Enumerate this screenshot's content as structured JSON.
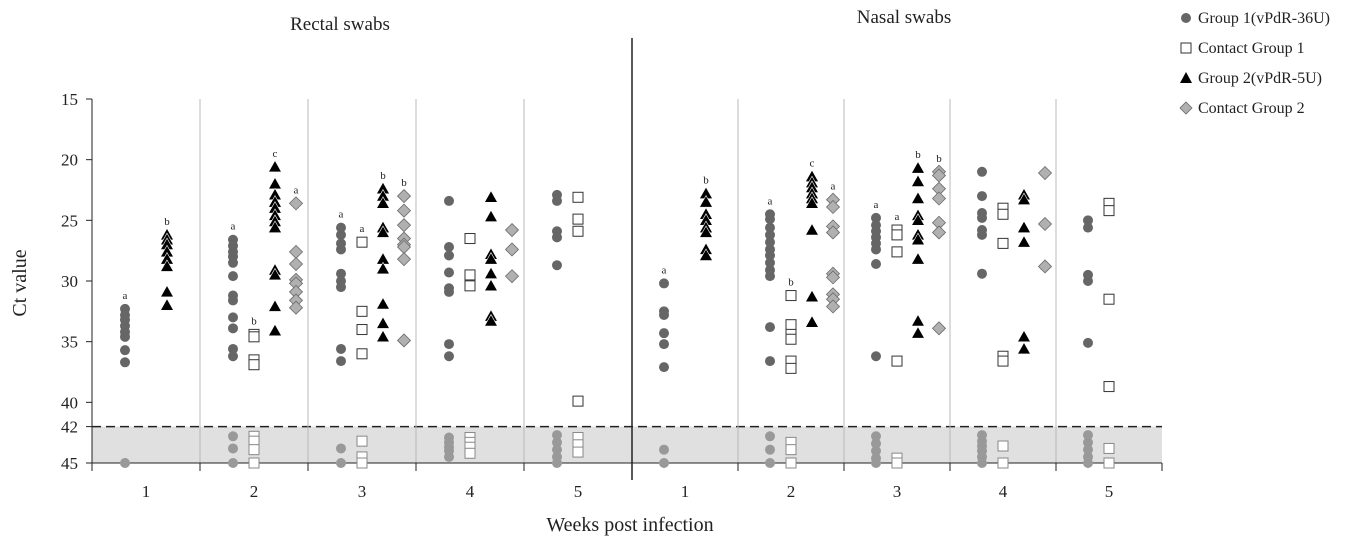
{
  "chart_data": {
    "type": "scatter",
    "panels": [
      {
        "title": "Rectal swabs",
        "weeks": [
          {
            "week": "1",
            "series": {
              "Group 1(vPdR-36U)": [
                32.3,
                32.8,
                33.2,
                33.7,
                34.2,
                34.6,
                35.7,
                36.7,
                45
              ],
              "Contact Group 1": [],
              "Group 2(vPdR-5U)": [
                26.2,
                26.6,
                27.0,
                27.6,
                28.2,
                28.8,
                30.9,
                32.0
              ],
              "Contact Group 2": []
            },
            "letters": {
              "Group 1(vPdR-36U)": "a",
              "Group 2(vPdR-5U)": "b"
            }
          },
          {
            "week": "2",
            "series": {
              "Group 1(vPdR-36U)": [
                26.6,
                27.1,
                27.6,
                28.0,
                28.5,
                29.6,
                31.2,
                31.6,
                33.0,
                33.9,
                35.6,
                36.2,
                42.8,
                43.8,
                45
              ],
              "Contact Group 1": [
                34.4,
                34.6,
                36.5,
                36.9,
                42.8,
                43.2,
                43.9,
                45
              ],
              "Group 2(vPdR-5U)": [
                20.6,
                22.0,
                22.9,
                23.5,
                24.0,
                24.6,
                25.1,
                25.6,
                29.1,
                29.5,
                32.1,
                34.1
              ],
              "Contact Group 2": [
                23.6,
                27.6,
                28.6,
                29.9,
                30.2,
                30.9,
                31.6,
                32.2
              ]
            },
            "letters": {
              "Group 1(vPdR-36U)": "a",
              "Contact Group 1": "b",
              "Group 2(vPdR-5U)": "c",
              "Contact Group 2": "a"
            }
          },
          {
            "week": "3",
            "series": {
              "Group 1(vPdR-36U)": [
                25.6,
                26.2,
                26.9,
                27.4,
                29.4,
                30.0,
                30.5,
                35.6,
                36.6,
                43.8,
                45
              ],
              "Contact Group 1": [
                26.8,
                32.5,
                34.0,
                36.0,
                43.2,
                44.5,
                45
              ],
              "Group 2(vPdR-5U)": [
                22.4,
                23.0,
                23.6,
                25.6,
                26.0,
                28.2,
                29.0,
                31.9,
                33.5,
                34.6
              ],
              "Contact Group 2": [
                23.0,
                24.2,
                25.4,
                26.5,
                27.0,
                27.2,
                28.2,
                34.9
              ]
            },
            "letters": {
              "Group 1(vPdR-36U)": "a",
              "Contact Group 1": "a",
              "Group 2(vPdR-5U)": "b",
              "Contact Group 2": "b"
            }
          },
          {
            "week": "4",
            "series": {
              "Group 1(vPdR-36U)": [
                23.4,
                27.2,
                27.9,
                29.3,
                30.6,
                30.9,
                35.2,
                36.2,
                42.9,
                43.3,
                43.7,
                44.0,
                44.5
              ],
              "Contact Group 1": [
                26.5,
                29.5,
                30.4,
                42.9,
                43.3,
                43.7,
                44.2
              ],
              "Group 2(vPdR-5U)": [
                23.1,
                24.7,
                27.8,
                28.2,
                29.4,
                30.4,
                32.9,
                33.3
              ],
              "Contact Group 2": [
                25.8,
                27.4,
                29.6
              ]
            },
            "letters": {}
          },
          {
            "week": "5",
            "series": {
              "Group 1(vPdR-36U)": [
                22.9,
                23.4,
                25.9,
                26.4,
                28.7,
                42.7,
                43.3,
                43.9,
                44.5,
                45
              ],
              "Contact Group 1": [
                23.1,
                24.9,
                25.9,
                39.9,
                42.9,
                43.5,
                44.1
              ],
              "Group 2(vPdR-5U)": [],
              "Contact Group 2": []
            },
            "letters": {}
          }
        ]
      },
      {
        "title": "Nasal swabs",
        "weeks": [
          {
            "week": "1",
            "series": {
              "Group 1(vPdR-36U)": [
                30.2,
                32.5,
                32.8,
                34.3,
                35.2,
                37.1,
                43.9,
                45
              ],
              "Contact Group 1": [],
              "Group 2(vPdR-5U)": [
                22.8,
                23.5,
                24.5,
                25.0,
                25.6,
                26.0,
                27.4,
                27.9
              ],
              "Contact Group 2": []
            },
            "letters": {
              "Group 1(vPdR-36U)": "a",
              "Group 2(vPdR-5U)": "b"
            }
          },
          {
            "week": "2",
            "series": {
              "Group 1(vPdR-36U)": [
                24.5,
                24.9,
                25.6,
                26.2,
                26.8,
                27.4,
                27.9,
                28.5,
                29.1,
                29.6,
                33.8,
                36.6,
                42.8,
                43.9,
                45
              ],
              "Contact Group 1": [
                31.2,
                33.6,
                34.4,
                34.8,
                36.6,
                37.2,
                43.3,
                43.9,
                45
              ],
              "Group 2(vPdR-5U)": [
                21.4,
                21.9,
                22.3,
                22.8,
                23.2,
                23.6,
                25.8,
                31.3,
                33.4
              ],
              "Contact Group 2": [
                23.3,
                23.9,
                25.5,
                26.0,
                29.4,
                29.7,
                31.1,
                31.5,
                32.1
              ]
            },
            "letters": {
              "Group 1(vPdR-36U)": "a",
              "Contact Group 1": "b",
              "Group 2(vPdR-5U)": "c",
              "Contact Group 2": "a"
            }
          },
          {
            "week": "3",
            "series": {
              "Group 1(vPdR-36U)": [
                24.8,
                25.4,
                25.9,
                26.4,
                26.9,
                27.4,
                28.6,
                36.2,
                42.8,
                43.4,
                44.0,
                44.6,
                45
              ],
              "Contact Group 1": [
                25.8,
                26.2,
                27.6,
                36.6,
                44.6,
                45
              ],
              "Group 2(vPdR-5U)": [
                20.7,
                21.8,
                23.2,
                24.6,
                25.0,
                26.2,
                26.6,
                28.2,
                33.3,
                34.3
              ],
              "Contact Group 2": [
                21.0,
                21.3,
                22.4,
                23.2,
                25.2,
                26.0,
                33.9
              ]
            },
            "letters": {
              "Group 1(vPdR-36U)": "a",
              "Contact Group 1": "a",
              "Group 2(vPdR-5U)": "b",
              "Contact Group 2": "b"
            }
          },
          {
            "week": "4",
            "series": {
              "Group 1(vPdR-36U)": [
                21.0,
                23.0,
                24.4,
                24.8,
                25.8,
                26.2,
                29.4,
                42.7,
                43.2,
                43.6,
                44.0,
                44.5,
                45
              ],
              "Contact Group 1": [
                24.0,
                24.5,
                26.9,
                36.2,
                36.6,
                43.6,
                45
              ],
              "Group 2(vPdR-5U)": [
                22.9,
                23.3,
                25.6,
                26.8,
                34.6,
                35.6
              ],
              "Contact Group 2": [
                21.1,
                25.3,
                28.8
              ]
            },
            "letters": {}
          },
          {
            "week": "5",
            "series": {
              "Group 1(vPdR-36U)": [
                25.0,
                25.6,
                29.5,
                30.0,
                35.1,
                42.7,
                43.3,
                43.9,
                44.5,
                45
              ],
              "Contact Group 1": [
                23.6,
                24.2,
                31.5,
                38.7,
                43.8,
                45
              ],
              "Group 2(vPdR-5U)": [],
              "Contact Group 2": []
            },
            "letters": {}
          }
        ]
      }
    ],
    "xlabel": "Weeks post infection",
    "ylabel": "Ct value",
    "yticks": [
      15,
      20,
      25,
      30,
      35,
      40,
      42,
      45
    ],
    "ylim": [
      15,
      45
    ],
    "y_inverted": true,
    "cutoff": 42,
    "legend": [
      {
        "name": "Group 1(vPdR-36U)",
        "marker": "circle",
        "symbol": "●",
        "color": "#666666"
      },
      {
        "name": "Contact Group 1",
        "marker": "square-open",
        "symbol": "□",
        "color": "#333333"
      },
      {
        "name": "Group 2(vPdR-5U)",
        "marker": "triangle",
        "symbol": "▲",
        "color": "#000000"
      },
      {
        "name": "Contact Group 2",
        "marker": "diamond",
        "symbol": "◆",
        "color": "#b0b0b0"
      }
    ],
    "legend_position": "top-right",
    "colors": {
      "circle": "#666666",
      "circle_below_cutoff": "#999999",
      "square_stroke": "#333333",
      "triangle": "#000000",
      "diamond_fill": "#b0b0b0",
      "diamond_stroke": "#6a6a6a",
      "shaded_band": "#e0e0e0"
    }
  }
}
